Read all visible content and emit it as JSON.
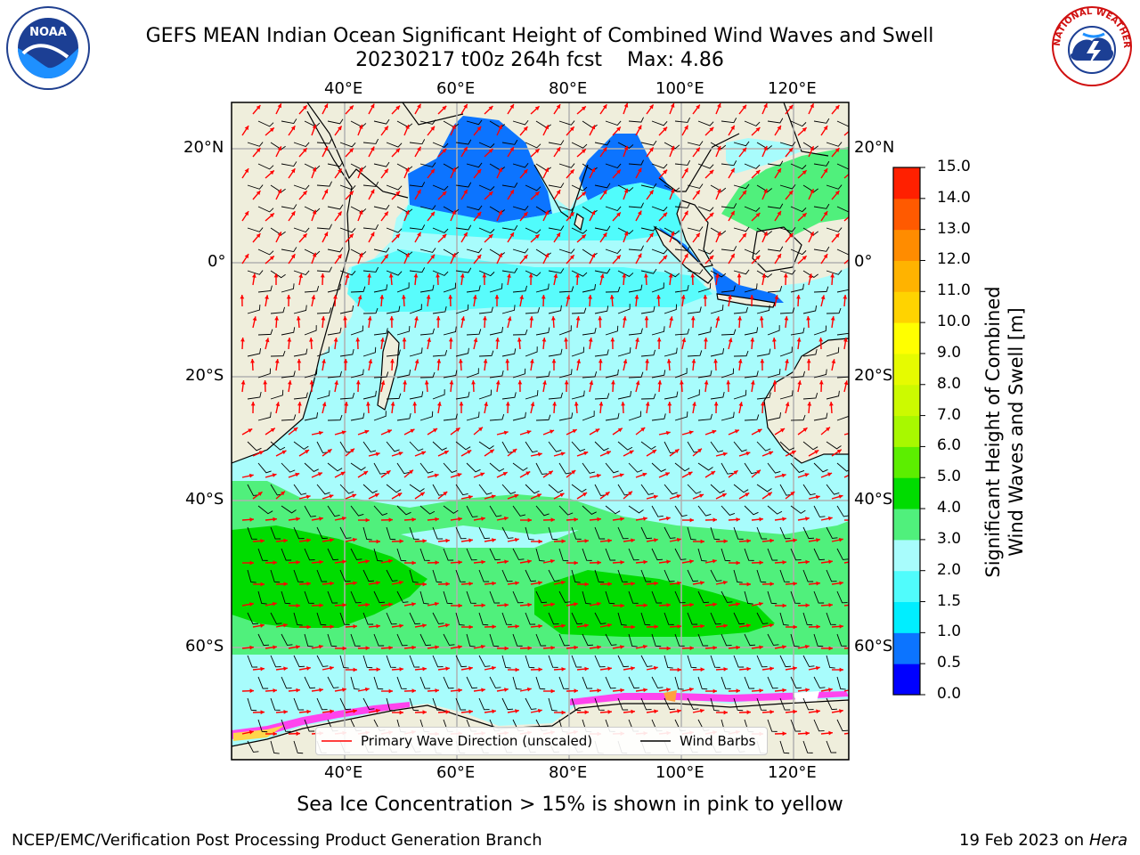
{
  "header": {
    "title_line1": "GEFS MEAN Indian Ocean Significant Height of Combined Wind Waves and Swell",
    "cycle": "20230217 t00z 264h fcst",
    "max_label": "Max: 4.86"
  },
  "logos": {
    "noaa_text": "NOAA",
    "nws_text": "NATIONAL WEATHER SERVICE"
  },
  "map": {
    "lon_labels": [
      "40°E",
      "60°E",
      "80°E",
      "100°E",
      "120°E"
    ],
    "lat_labels_left": [
      "20°N",
      "0°",
      "20°S",
      "40°S",
      "60°S"
    ],
    "lat_labels_right": [
      "20°N",
      "0°",
      "20°S",
      "40°S",
      "60°S"
    ],
    "land_color": "#efeedc",
    "ocean_low_color": "#a8fcfc",
    "wave_arrow_color": "#ff0000",
    "wind_barb_color": "#000000"
  },
  "legend": {
    "primary_wave": "Primary Wave Direction (unscaled)",
    "wind_barbs": "Wind Barbs"
  },
  "colorbar": {
    "label_line1": "Significant Height of Combined",
    "label_line2": "Wind Waves and Swell [m]",
    "ticks": [
      "0.0",
      "0.5",
      "1.0",
      "1.5",
      "2.0",
      "3.0",
      "4.0",
      "5.0",
      "6.0",
      "7.0",
      "8.0",
      "9.0",
      "10.0",
      "11.0",
      "12.0",
      "13.0",
      "14.0",
      "15.0"
    ],
    "colors": [
      "#0000ff",
      "#0c74ff",
      "#00eeff",
      "#50fcfc",
      "#a8fcfc",
      "#50f07c",
      "#00dc00",
      "#5cee00",
      "#a8f800",
      "#ccfa00",
      "#e6fb00",
      "#ffff00",
      "#ffd300",
      "#ffb300",
      "#ff8c00",
      "#ff5a00",
      "#ff2000"
    ]
  },
  "footer": {
    "sea_ice_note": "Sea Ice Concentration > 15% is shown in pink to yellow",
    "credit": "NCEP/EMC/Verification Post Processing Product Generation Branch",
    "run_date": "19 Feb 2023 on",
    "host": "Hera"
  }
}
